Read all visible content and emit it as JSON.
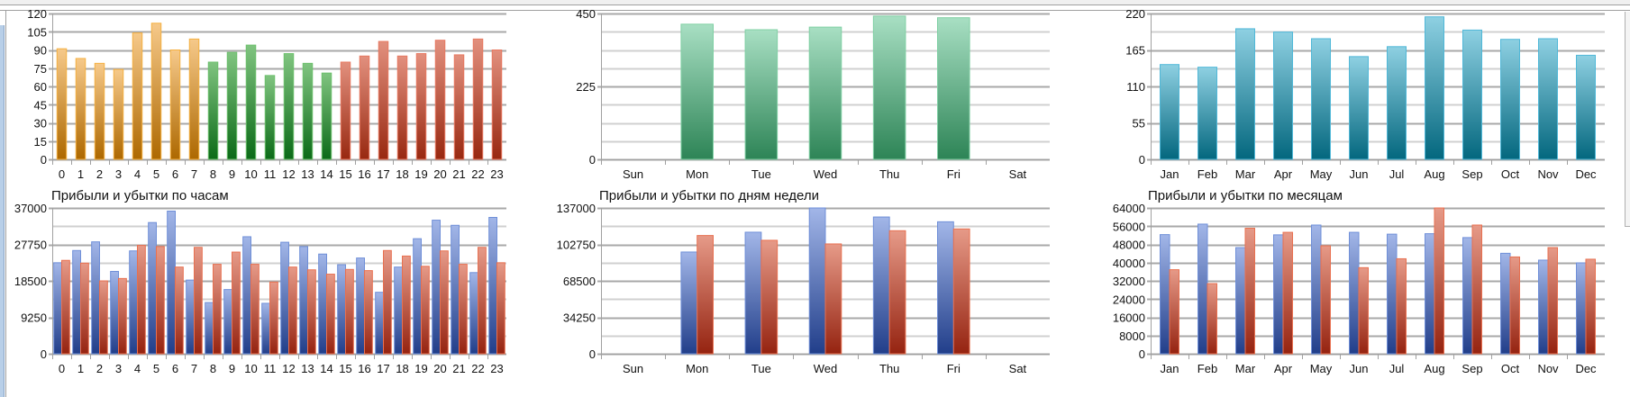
{
  "chart_data": [
    {
      "type": "bar",
      "title": "",
      "categories": [
        "0",
        "1",
        "2",
        "3",
        "4",
        "5",
        "6",
        "7",
        "8",
        "9",
        "10",
        "11",
        "12",
        "13",
        "14",
        "15",
        "16",
        "17",
        "18",
        "19",
        "20",
        "21",
        "22",
        "23"
      ],
      "values": [
        91,
        83,
        79,
        74,
        104,
        112,
        90,
        99,
        80,
        88,
        94,
        69,
        87,
        79,
        71,
        80,
        85,
        97,
        85,
        87,
        98,
        86,
        99,
        90
      ],
      "ylim": [
        0,
        120
      ],
      "yticks": [
        0,
        15,
        30,
        45,
        60,
        75,
        90,
        105,
        120
      ],
      "grid": true,
      "color_groups": [
        {
          "from": 0,
          "to": 7,
          "top": "#f6c98a",
          "bottom": "#ad6800",
          "border": "#f5b040"
        },
        {
          "from": 8,
          "to": 14,
          "top": "#80c480",
          "bottom": "#0b6a17",
          "border": "#6cc06c"
        },
        {
          "from": 15,
          "to": 23,
          "top": "#e2907e",
          "bottom": "#982810",
          "border": "#e87860"
        }
      ]
    },
    {
      "type": "bar",
      "title": "Прибыли и убытки по часам",
      "categories": [
        "0",
        "1",
        "2",
        "3",
        "4",
        "5",
        "6",
        "7",
        "8",
        "9",
        "10",
        "11",
        "12",
        "13",
        "14",
        "15",
        "16",
        "17",
        "18",
        "19",
        "20",
        "21",
        "22",
        "23"
      ],
      "series": [
        {
          "values": [
            23100,
            26200,
            28400,
            20900,
            26100,
            33300,
            36200,
            18700,
            13000,
            16300,
            29700,
            12800,
            28300,
            27200,
            25300,
            22600,
            24300,
            15600,
            22000,
            29200,
            33900,
            32600,
            20600,
            34600
          ],
          "top": "#a2b6e8",
          "bottom": "#213e8a",
          "border": "#6f8fd8"
        },
        {
          "values": [
            23700,
            23000,
            18500,
            19100,
            27500,
            27200,
            22000,
            27000,
            22700,
            25800,
            22700,
            18200,
            22000,
            21300,
            20200,
            21400,
            21100,
            26200,
            24800,
            22200,
            26100,
            22700,
            27000,
            23100
          ],
          "top": "#e69a88",
          "bottom": "#952310",
          "border": "#e87050"
        }
      ],
      "ylim": [
        0,
        37000
      ],
      "yticks": [
        0,
        9250,
        18500,
        27750,
        37000
      ],
      "grid": true
    },
    {
      "type": "bar",
      "title": "",
      "categories": [
        "Sun",
        "Mon",
        "Tue",
        "Wed",
        "Thu",
        "Fri",
        "Sat"
      ],
      "values": [
        0,
        417,
        400,
        408,
        442,
        437,
        0
      ],
      "ylim": [
        0,
        450
      ],
      "yticks": [
        0,
        225,
        450
      ],
      "grid": true,
      "color_groups": [
        {
          "from": 0,
          "to": 6,
          "top": "#a8dfc3",
          "bottom": "#2d8456",
          "border": "#80d0a4"
        }
      ]
    },
    {
      "type": "bar",
      "title": "Прибыли и убытки по дням недели",
      "categories": [
        "Sun",
        "Mon",
        "Tue",
        "Wed",
        "Thu",
        "Fri",
        "Sat"
      ],
      "series": [
        {
          "values": [
            0,
            95600,
            114200,
            137000,
            128500,
            124000,
            0
          ],
          "top": "#a2b6e8",
          "bottom": "#213e8a",
          "border": "#6f8fd8"
        },
        {
          "values": [
            0,
            111100,
            106600,
            103200,
            115600,
            117300,
            0
          ],
          "top": "#e69a88",
          "bottom": "#952310",
          "border": "#e87050"
        }
      ],
      "ylim": [
        0,
        137000
      ],
      "yticks": [
        0,
        34250,
        68500,
        102750,
        137000
      ],
      "grid": true
    },
    {
      "type": "bar",
      "title": "",
      "categories": [
        "Jan",
        "Feb",
        "Mar",
        "Apr",
        "May",
        "Jun",
        "Jul",
        "Aug",
        "Sep",
        "Oct",
        "Nov",
        "Dec"
      ],
      "values": [
        143,
        139,
        197,
        192,
        182,
        155,
        170,
        215,
        195,
        181,
        182,
        157
      ],
      "ylim": [
        0,
        220
      ],
      "yticks": [
        0,
        55,
        110,
        165,
        220
      ],
      "grid": true,
      "color_groups": [
        {
          "from": 0,
          "to": 11,
          "top": "#8ed0e2",
          "bottom": "#03677e",
          "border": "#50b8d8"
        }
      ]
    },
    {
      "type": "bar",
      "title": "Прибыли и убытки по месяцам",
      "categories": [
        "Jan",
        "Feb",
        "Mar",
        "Apr",
        "May",
        "Jun",
        "Jul",
        "Aug",
        "Sep",
        "Oct",
        "Nov",
        "Dec"
      ],
      "series": [
        {
          "values": [
            52300,
            56900,
            46600,
            52200,
            56500,
            53300,
            52500,
            52700,
            51000,
            44100,
            41100,
            39900
          ],
          "top": "#a2b6e8",
          "bottom": "#213e8a",
          "border": "#6f8fd8"
        },
        {
          "values": [
            36900,
            30800,
            55100,
            53300,
            47400,
            37800,
            41700,
            64000,
            56500,
            42500,
            46600,
            41500
          ],
          "top": "#e69a88",
          "bottom": "#952310",
          "border": "#e87050"
        }
      ],
      "ylim": [
        0,
        64000
      ],
      "yticks": [
        0,
        8000,
        16000,
        24000,
        32000,
        40000,
        48000,
        56000,
        64000
      ],
      "grid": true
    }
  ]
}
